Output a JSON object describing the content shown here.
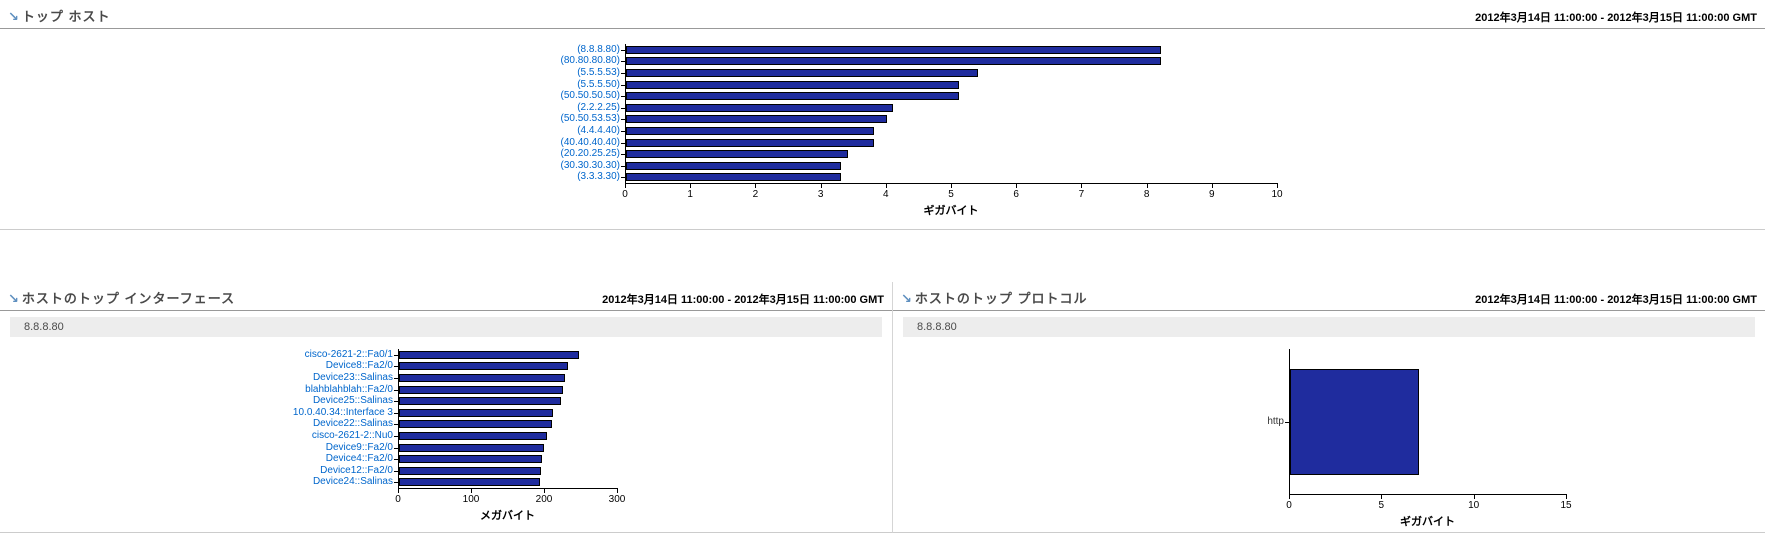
{
  "icons": {
    "panel_arrow": "↘"
  },
  "panels": {
    "top_hosts": {
      "title": "トップ ホスト",
      "timestamp": "2012年3月14日 11:00:00 - 2012年3月15日 11:00:00 GMT",
      "chart_data": {
        "type": "bar",
        "orientation": "horizontal",
        "categories": [
          "(8.8.8.80)",
          "(80.80.80.80)",
          "(5.5.5.53)",
          "(5.5.5.50)",
          "(50.50.50.50)",
          "(2.2.2.25)",
          "(50.50.53.53)",
          "(4.4.4.40)",
          "(40.40.40.40)",
          "(20.20.25.25)",
          "(30.30.30.30)",
          "(3.3.3.30)"
        ],
        "values": [
          8.2,
          8.2,
          5.4,
          5.1,
          5.1,
          4.1,
          4.0,
          3.8,
          3.8,
          3.4,
          3.3,
          3.3
        ],
        "xlabel": "ギガバイト",
        "xlim": [
          0,
          10
        ],
        "xticks": [
          0,
          1,
          2,
          3,
          4,
          5,
          6,
          7,
          8,
          9,
          10
        ],
        "bar_color": "#1f2c9e",
        "label_color": "#0066cc",
        "labels_clickable": true,
        "grid": false,
        "legend": "none"
      }
    },
    "host_top_interfaces": {
      "title": "ホストのトップ インターフェース",
      "timestamp": "2012年3月14日 11:00:00 - 2012年3月15日 11:00:00 GMT",
      "subheader": "8.8.8.80",
      "chart_data": {
        "type": "bar",
        "orientation": "horizontal",
        "categories": [
          "cisco-2621-2::Fa0/1",
          "Device8::Fa2/0",
          "Device23::Salinas",
          "blahblahblah::Fa2/0",
          "Device25::Salinas",
          "10.0.40.34::Interface 3",
          "Device22::Salinas",
          "cisco-2621-2::Nu0",
          "Device9::Fa2/0",
          "Device4::Fa2/0",
          "Device12::Fa2/0",
          "Device24::Salinas"
        ],
        "values": [
          247,
          232,
          227,
          224,
          222,
          211,
          210,
          203,
          199,
          196,
          195,
          193
        ],
        "xlabel": "メガバイト",
        "xlim": [
          0,
          300
        ],
        "xticks": [
          0,
          100,
          200,
          300
        ],
        "bar_color": "#1f2c9e",
        "label_color": "#0066cc",
        "labels_clickable": true,
        "grid": false,
        "legend": "none"
      }
    },
    "host_top_protocols": {
      "title": "ホストのトップ プロトコル",
      "timestamp": "2012年3月14日 11:00:00 - 2012年3月15日 11:00:00 GMT",
      "subheader": "8.8.8.80",
      "chart_data": {
        "type": "bar",
        "orientation": "horizontal",
        "categories": [
          "http"
        ],
        "values": [
          7
        ],
        "xlabel": "ギガバイト",
        "xlim": [
          0,
          15
        ],
        "xticks": [
          0,
          5,
          10,
          15
        ],
        "bar_color": "#1f2c9e",
        "label_color": "#333333",
        "labels_clickable": false,
        "grid": false,
        "legend": "none"
      }
    }
  }
}
